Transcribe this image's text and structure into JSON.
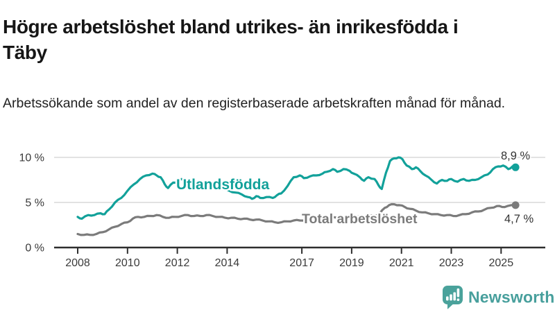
{
  "header": {
    "title_line1": "Högre arbetslöshet bland utrikes- än inrikesfödda i",
    "title_line2": "Täby",
    "subtitle": "Arbetssökande som andel av den registerbaserade arbetskraften månad för månad."
  },
  "chart_data": {
    "type": "line",
    "title": "Högre arbetslöshet bland utrikes- än inrikesfödda i Täby",
    "subtitle": "Arbetssökande som andel av den registerbaserade arbetskraften månad för månad.",
    "unit": "%",
    "legend_position": "inline-line-labels",
    "x_axis": {
      "tick_labels": [
        "2008",
        "2010",
        "2012",
        "2014",
        "2017",
        "2019",
        "2021",
        "2023",
        "2025"
      ],
      "tick_values": [
        2008,
        2010,
        2012,
        2014,
        2017,
        2019,
        2021,
        2023,
        2025
      ],
      "range": [
        2007.05,
        2026.8
      ]
    },
    "y_axis": {
      "tick_labels": [
        "0 %",
        "5 %",
        "10 %"
      ],
      "tick_values": [
        0,
        5,
        10
      ],
      "range": [
        0,
        10.9
      ],
      "grid": true,
      "grid_color": "#d8d8d8",
      "axis_color": "#2e2e2e"
    },
    "series": [
      {
        "name": "Utlandsfödda",
        "color": "#12a19a",
        "end_label": "8,9 %",
        "end_value": 8.9,
        "points": [
          [
            2008.0,
            3.4
          ],
          [
            2008.17,
            3.2
          ],
          [
            2008.42,
            3.6
          ],
          [
            2008.67,
            3.6
          ],
          [
            2008.92,
            3.8
          ],
          [
            2009.08,
            3.7
          ],
          [
            2009.25,
            4.2
          ],
          [
            2009.5,
            5.0
          ],
          [
            2009.75,
            5.5
          ],
          [
            2010.0,
            6.3
          ],
          [
            2010.25,
            7.0
          ],
          [
            2010.5,
            7.6
          ],
          [
            2010.75,
            8.0
          ],
          [
            2011.0,
            8.2
          ],
          [
            2011.17,
            8.0
          ],
          [
            2011.33,
            7.8
          ],
          [
            2011.5,
            7.0
          ],
          [
            2011.63,
            6.6
          ],
          [
            2011.83,
            7.2
          ],
          [
            2012.0,
            7.3
          ],
          [
            2012.17,
            7.6
          ],
          [
            2012.5,
            7.2
          ],
          [
            2012.83,
            7.0
          ],
          [
            2013.17,
            6.8
          ],
          [
            2013.5,
            6.6
          ],
          [
            2013.83,
            6.5
          ],
          [
            2014.08,
            6.3
          ],
          [
            2014.33,
            6.1
          ],
          [
            2014.58,
            5.9
          ],
          [
            2014.83,
            5.6
          ],
          [
            2015.0,
            5.4
          ],
          [
            2015.17,
            5.7
          ],
          [
            2015.33,
            5.5
          ],
          [
            2015.58,
            5.6
          ],
          [
            2015.83,
            5.5
          ],
          [
            2016.0,
            5.8
          ],
          [
            2016.17,
            6.0
          ],
          [
            2016.42,
            6.8
          ],
          [
            2016.67,
            7.8
          ],
          [
            2016.92,
            8.0
          ],
          [
            2017.08,
            7.7
          ],
          [
            2017.33,
            7.9
          ],
          [
            2017.58,
            8.0
          ],
          [
            2017.83,
            8.2
          ],
          [
            2018.0,
            8.4
          ],
          [
            2018.25,
            8.7
          ],
          [
            2018.42,
            8.4
          ],
          [
            2018.67,
            8.7
          ],
          [
            2018.92,
            8.5
          ],
          [
            2019.08,
            8.2
          ],
          [
            2019.33,
            7.8
          ],
          [
            2019.5,
            7.4
          ],
          [
            2019.67,
            7.8
          ],
          [
            2019.92,
            7.6
          ],
          [
            2020.08,
            6.9
          ],
          [
            2020.21,
            6.5
          ],
          [
            2020.38,
            8.3
          ],
          [
            2020.54,
            9.6
          ],
          [
            2020.71,
            9.9
          ],
          [
            2020.88,
            10.0
          ],
          [
            2021.04,
            9.8
          ],
          [
            2021.21,
            9.1
          ],
          [
            2021.42,
            8.7
          ],
          [
            2021.58,
            8.9
          ],
          [
            2021.75,
            8.5
          ],
          [
            2021.96,
            8.0
          ],
          [
            2022.21,
            7.5
          ],
          [
            2022.42,
            7.1
          ],
          [
            2022.63,
            7.5
          ],
          [
            2022.83,
            7.4
          ],
          [
            2023.0,
            7.6
          ],
          [
            2023.25,
            7.3
          ],
          [
            2023.5,
            7.6
          ],
          [
            2023.71,
            7.4
          ],
          [
            2023.96,
            7.5
          ],
          [
            2024.21,
            7.8
          ],
          [
            2024.46,
            8.1
          ],
          [
            2024.67,
            8.7
          ],
          [
            2024.88,
            9.0
          ],
          [
            2025.08,
            9.1
          ],
          [
            2025.29,
            8.7
          ],
          [
            2025.46,
            9.0
          ],
          [
            2025.58,
            8.9
          ]
        ]
      },
      {
        "name": "Total arbetslöshet",
        "color": "#7b7b7b",
        "end_label": "4,7 %",
        "end_value": 4.7,
        "points": [
          [
            2008.0,
            1.5
          ],
          [
            2008.25,
            1.4
          ],
          [
            2008.5,
            1.4
          ],
          [
            2008.75,
            1.5
          ],
          [
            2009.0,
            1.7
          ],
          [
            2009.25,
            2.0
          ],
          [
            2009.5,
            2.3
          ],
          [
            2009.75,
            2.6
          ],
          [
            2010.0,
            2.8
          ],
          [
            2010.21,
            3.2
          ],
          [
            2010.42,
            3.4
          ],
          [
            2010.67,
            3.4
          ],
          [
            2010.92,
            3.5
          ],
          [
            2011.17,
            3.6
          ],
          [
            2011.42,
            3.4
          ],
          [
            2011.67,
            3.3
          ],
          [
            2011.92,
            3.4
          ],
          [
            2012.17,
            3.5
          ],
          [
            2012.42,
            3.6
          ],
          [
            2012.67,
            3.5
          ],
          [
            2012.92,
            3.5
          ],
          [
            2013.17,
            3.6
          ],
          [
            2013.42,
            3.5
          ],
          [
            2013.67,
            3.4
          ],
          [
            2013.92,
            3.3
          ],
          [
            2014.17,
            3.3
          ],
          [
            2014.42,
            3.2
          ],
          [
            2014.67,
            3.2
          ],
          [
            2014.92,
            3.1
          ],
          [
            2015.17,
            3.1
          ],
          [
            2015.42,
            3.0
          ],
          [
            2015.67,
            2.9
          ],
          [
            2015.92,
            2.8
          ],
          [
            2016.17,
            2.8
          ],
          [
            2016.42,
            2.9
          ],
          [
            2016.67,
            3.0
          ],
          [
            2016.92,
            3.0
          ],
          [
            2017.17,
            3.1
          ],
          [
            2017.42,
            3.1
          ],
          [
            2017.67,
            3.2
          ],
          [
            2017.92,
            3.2
          ],
          [
            2018.17,
            3.3
          ],
          [
            2018.42,
            3.3
          ],
          [
            2018.67,
            3.3
          ],
          [
            2018.92,
            3.3
          ],
          [
            2019.17,
            3.4
          ],
          [
            2019.42,
            3.4
          ],
          [
            2019.67,
            3.5
          ],
          [
            2019.92,
            3.5
          ],
          [
            2020.13,
            3.8
          ],
          [
            2020.33,
            4.4
          ],
          [
            2020.5,
            4.7
          ],
          [
            2020.71,
            4.8
          ],
          [
            2020.92,
            4.7
          ],
          [
            2021.13,
            4.5
          ],
          [
            2021.33,
            4.3
          ],
          [
            2021.58,
            4.1
          ],
          [
            2021.83,
            3.9
          ],
          [
            2022.08,
            3.8
          ],
          [
            2022.33,
            3.7
          ],
          [
            2022.58,
            3.6
          ],
          [
            2022.83,
            3.6
          ],
          [
            2023.08,
            3.5
          ],
          [
            2023.33,
            3.6
          ],
          [
            2023.58,
            3.7
          ],
          [
            2023.83,
            3.9
          ],
          [
            2024.08,
            4.0
          ],
          [
            2024.33,
            4.2
          ],
          [
            2024.58,
            4.4
          ],
          [
            2024.83,
            4.6
          ],
          [
            2025.04,
            4.5
          ],
          [
            2025.25,
            4.6
          ],
          [
            2025.58,
            4.7
          ]
        ]
      }
    ]
  },
  "footer": {
    "brand": "Newsworthy",
    "brand_color": "#479f9c"
  }
}
